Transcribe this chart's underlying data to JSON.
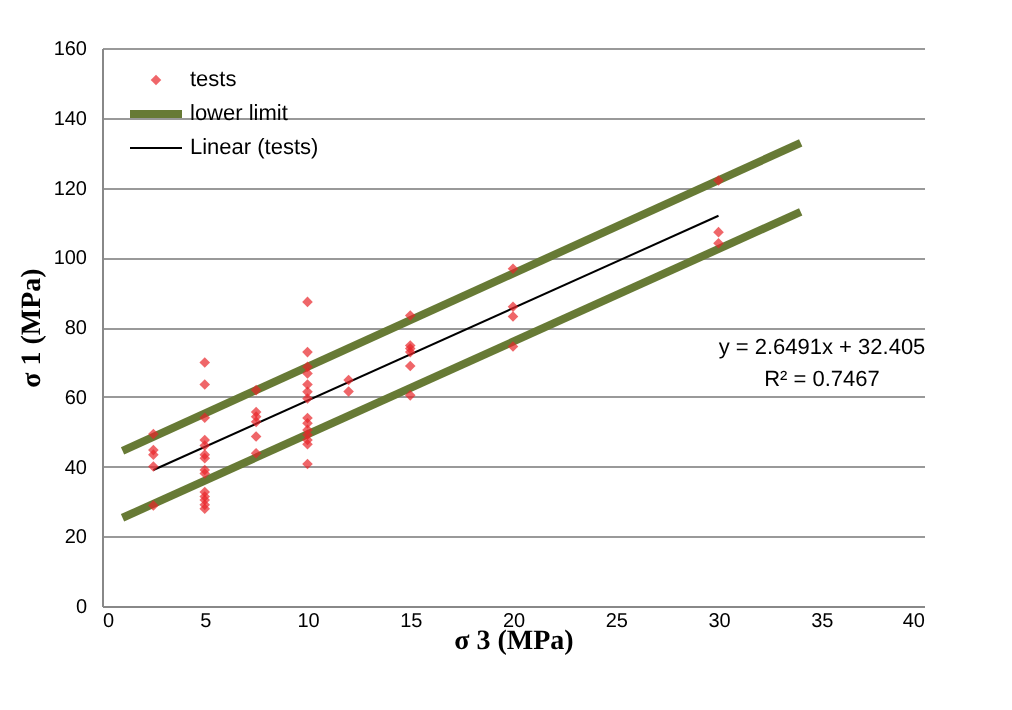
{
  "chart_data": {
    "type": "scatter",
    "xlabel": "σ 3 (MPa)",
    "ylabel": "σ 1 (MPa)",
    "xlim": [
      0,
      40
    ],
    "xticks": [
      0,
      5,
      10,
      15,
      20,
      25,
      30,
      35,
      40
    ],
    "ylim": [
      0,
      160
    ],
    "yticks": [
      0,
      20,
      40,
      60,
      80,
      100,
      120,
      140,
      160
    ],
    "grid": "y",
    "legend": "top left",
    "annotations": [
      "y = 2.6491x + 32.405",
      "R² = 0.7467"
    ],
    "series": [
      {
        "name": "tests",
        "type": "scatter",
        "marker": "diamond",
        "color": "#e8252a",
        "x": [
          2.5,
          2.5,
          2.5,
          2.5,
          2.5,
          5,
          5,
          5,
          5,
          5,
          5,
          5,
          5,
          5,
          5,
          5,
          5,
          5,
          5,
          7.5,
          7.5,
          7.5,
          7.5,
          7.5,
          7.5,
          10,
          10,
          10,
          10,
          10,
          10,
          10,
          10,
          10,
          10,
          10,
          10,
          10,
          10,
          12,
          12,
          15,
          15,
          15,
          15,
          15,
          15,
          20,
          20,
          20,
          20,
          30,
          30,
          30
        ],
        "values": [
          49.3,
          44.7,
          43.4,
          40,
          28.8,
          69.8,
          63.5,
          54,
          47.6,
          46,
          43.4,
          42.4,
          39,
          38,
          32.7,
          31.4,
          30.4,
          29,
          27.9,
          61.9,
          55.6,
          54.3,
          52.8,
          48.6,
          43.8,
          87.2,
          72.8,
          68.6,
          66.7,
          63.5,
          61.4,
          59.5,
          53.9,
          52.4,
          50.5,
          49.1,
          47.6,
          46.4,
          40.7,
          64.8,
          61.5,
          83.3,
          74.7,
          73.8,
          72.8,
          68.8,
          60.4,
          96.7,
          85.8,
          83,
          74.4,
          122,
          107.2,
          104
        ]
      },
      {
        "type": "line",
        "color": "#677a35",
        "x": [
          1,
          34
        ],
        "values": [
          44.5,
          132.8
        ]
      },
      {
        "name": "lower limit",
        "type": "line",
        "color": "#677a35",
        "x": [
          1,
          34
        ],
        "values": [
          25.3,
          113
        ]
      },
      {
        "name": "Linear (tests)",
        "type": "line",
        "color": "#000000",
        "x": [
          2.5,
          30
        ],
        "values": [
          39,
          111.9
        ]
      }
    ]
  }
}
